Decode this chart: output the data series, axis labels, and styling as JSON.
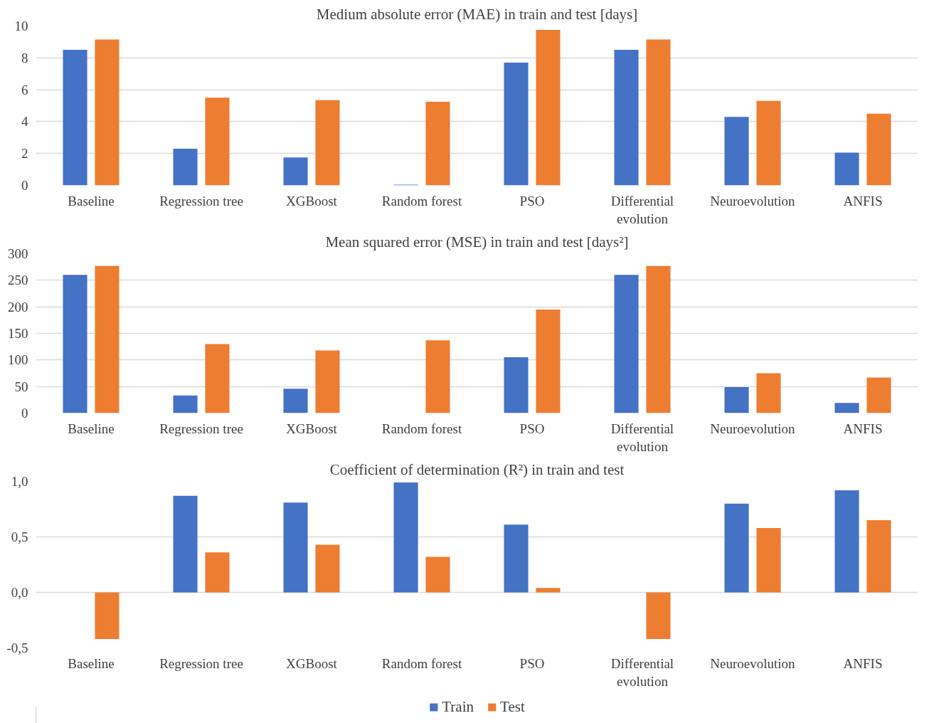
{
  "chart_data": [
    {
      "type": "bar",
      "title": "Medium absolute error (MAE) in train and test [days]",
      "categories": [
        "Baseline",
        "Regression tree",
        "XGBoost",
        "Random forest",
        "PSO",
        "Differential evolution",
        "Neuroevolution",
        "ANFIS"
      ],
      "series": [
        {
          "color": "#4472c4",
          "values": [
            8.5,
            2.3,
            1.75,
            0.05,
            7.7,
            8.5,
            4.3,
            2.05
          ]
        },
        {
          "color": "#ed7d31",
          "values": [
            9.15,
            5.5,
            5.35,
            5.25,
            9.75,
            9.15,
            5.3,
            4.5
          ]
        }
      ],
      "ylim": [
        0,
        10
      ],
      "yticks": [
        0,
        2,
        4,
        6,
        8,
        10
      ],
      "grid": "y",
      "legend": false
    },
    {
      "type": "bar",
      "title": "Mean squared error (MSE) in train and test [days²]",
      "categories": [
        "Baseline",
        "Regression tree",
        "XGBoost",
        "Random forest",
        "PSO",
        "Differential evolution",
        "Neuroevolution",
        "ANFIS"
      ],
      "series": [
        {
          "color": "#4472c4",
          "values": [
            260,
            33,
            46,
            0,
            105,
            260,
            49,
            19
          ]
        },
        {
          "color": "#ed7d31",
          "values": [
            277,
            130,
            118,
            137,
            195,
            277,
            75,
            67
          ]
        }
      ],
      "ylim": [
        0,
        300
      ],
      "yticks": [
        0,
        50,
        100,
        150,
        200,
        250,
        300
      ],
      "grid": "y",
      "legend": false
    },
    {
      "type": "bar",
      "title": "Coefficient of determination (R²) in train and test",
      "categories": [
        "Baseline",
        "Regression tree",
        "XGBoost",
        "Random forest",
        "PSO",
        "Differential evolution",
        "Neuroevolution",
        "ANFIS"
      ],
      "series": [
        {
          "name": "Train",
          "color": "#4472c4",
          "values": [
            0,
            0.87,
            0.81,
            0.99,
            0.61,
            0,
            0.8,
            0.92
          ]
        },
        {
          "name": "Test",
          "color": "#ed7d31",
          "values": [
            -0.42,
            0.36,
            0.43,
            0.32,
            0.04,
            -0.42,
            0.58,
            0.65
          ]
        }
      ],
      "ylim": [
        -0.5,
        1.0
      ],
      "yticks": [
        {
          "value": -0.5,
          "label": "-0,5"
        },
        {
          "value": 0,
          "label": "0,0"
        },
        {
          "value": 0.5,
          "label": "0,5"
        },
        {
          "value": 1.0,
          "label": "1,0"
        }
      ],
      "grid": "y",
      "legend": "bottom"
    }
  ]
}
